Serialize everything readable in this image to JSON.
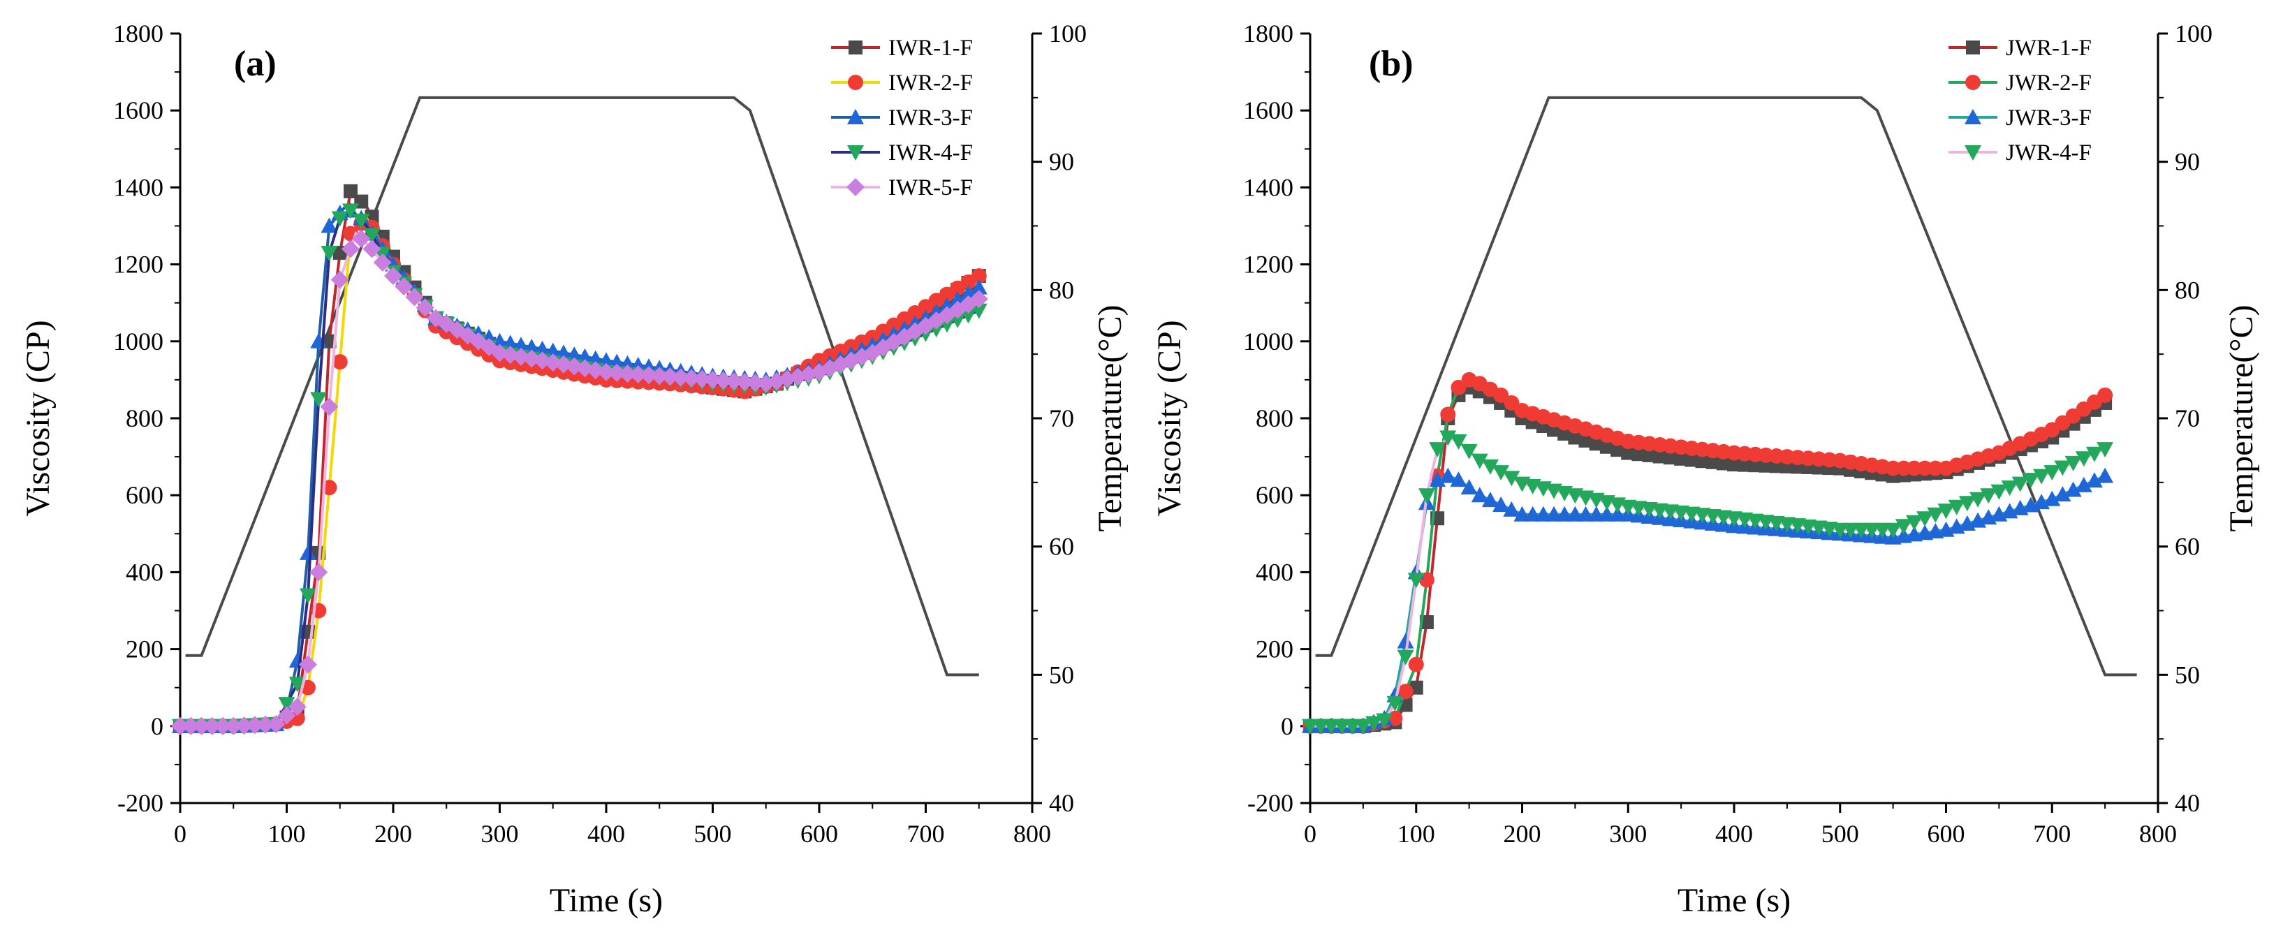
{
  "figure": {
    "description_panels": [
      "(a)",
      "(b)"
    ]
  },
  "chart_data": [
    {
      "type": "line",
      "panel_label": "(a)",
      "xlabel": "Time (s)",
      "ylabel": "Viscosity (CP)",
      "y2label": "Temperature(°C)",
      "xlim": [
        0,
        800
      ],
      "ylim": [
        -200,
        1800
      ],
      "y2lim": [
        40,
        100
      ],
      "xticks": [
        0,
        100,
        200,
        300,
        400,
        500,
        600,
        700,
        800
      ],
      "yticks": [
        -200,
        0,
        200,
        400,
        600,
        800,
        1000,
        1200,
        1400,
        1600,
        1800
      ],
      "y2ticks": [
        40,
        50,
        60,
        70,
        80,
        90,
        100
      ],
      "legend_position": "top-right",
      "temperature_profile": {
        "name": "Temperature",
        "axis": "right",
        "color": "#4a4a4a",
        "x": [
          5,
          20,
          225,
          240,
          520,
          535,
          720,
          750
        ],
        "y": [
          51.5,
          51.5,
          95,
          95,
          95,
          94,
          50,
          50
        ]
      },
      "series": [
        {
          "name": "IWR-1-F",
          "color": "#c0262b",
          "marker": "square",
          "marker_color": "#4a4a4a",
          "x": [
            0,
            50,
            90,
            110,
            130,
            140,
            150,
            160,
            175,
            200,
            240,
            300,
            400,
            460,
            500,
            530,
            560,
            600,
            650,
            700,
            750
          ],
          "y": [
            0,
            0,
            5,
            40,
            450,
            1000,
            1230,
            1390,
            1350,
            1220,
            1060,
            980,
            920,
            900,
            880,
            870,
            890,
            940,
            1000,
            1080,
            1170
          ]
        },
        {
          "name": "IWR-2-F",
          "color": "#f5d800",
          "marker": "circle",
          "marker_color": "#f03a34",
          "x": [
            0,
            50,
            90,
            110,
            120,
            130,
            145,
            160,
            175,
            200,
            240,
            300,
            400,
            460,
            500,
            530,
            560,
            600,
            650,
            700,
            750
          ],
          "y": [
            0,
            0,
            5,
            20,
            100,
            300,
            780,
            1280,
            1320,
            1200,
            1040,
            950,
            900,
            890,
            880,
            870,
            890,
            950,
            1010,
            1090,
            1170
          ]
        },
        {
          "name": "IWR-3-F",
          "color": "#1f5fa8",
          "marker": "triangle-up",
          "marker_color": "#1f66d8",
          "x": [
            0,
            50,
            90,
            100,
            110,
            120,
            130,
            140,
            155,
            170,
            200,
            240,
            300,
            400,
            500,
            550,
            600,
            650,
            700,
            750
          ],
          "y": [
            0,
            0,
            5,
            40,
            170,
            450,
            1000,
            1300,
            1350,
            1320,
            1200,
            1060,
            1000,
            950,
            910,
            900,
            930,
            990,
            1060,
            1140
          ]
        },
        {
          "name": "IWR-4-F",
          "color": "#2c2c8a",
          "marker": "triangle-down",
          "marker_color": "#22a85a",
          "x": [
            0,
            50,
            90,
            110,
            120,
            130,
            140,
            150,
            160,
            175,
            200,
            240,
            300,
            400,
            500,
            550,
            600,
            650,
            700,
            750
          ],
          "y": [
            0,
            0,
            5,
            110,
            340,
            850,
            1230,
            1320,
            1340,
            1300,
            1180,
            1060,
            970,
            920,
            890,
            880,
            910,
            960,
            1020,
            1080
          ]
        },
        {
          "name": "IWR-5-F",
          "color": "#f0b4e0",
          "marker": "diamond",
          "marker_color": "#c97ee0",
          "x": [
            0,
            50,
            90,
            110,
            120,
            130,
            140,
            150,
            165,
            180,
            200,
            240,
            300,
            400,
            500,
            550,
            600,
            650,
            700,
            750
          ],
          "y": [
            0,
            0,
            5,
            50,
            160,
            400,
            830,
            1160,
            1280,
            1240,
            1170,
            1060,
            970,
            920,
            900,
            890,
            920,
            970,
            1040,
            1110
          ]
        }
      ]
    },
    {
      "type": "line",
      "panel_label": "(b)",
      "xlabel": "Time (s)",
      "ylabel": "Viscosity (CP)",
      "y2label": "Temperature(°C)",
      "xlim": [
        0,
        800
      ],
      "ylim": [
        -200,
        1800
      ],
      "y2lim": [
        40,
        100
      ],
      "xticks": [
        0,
        100,
        200,
        300,
        400,
        500,
        600,
        700,
        800
      ],
      "yticks": [
        -200,
        0,
        200,
        400,
        600,
        800,
        1000,
        1200,
        1400,
        1600,
        1800
      ],
      "y2ticks": [
        40,
        50,
        60,
        70,
        80,
        90,
        100
      ],
      "legend_position": "top-right",
      "temperature_profile": {
        "name": "Temperature",
        "axis": "right",
        "color": "#4a4a4a",
        "x": [
          5,
          20,
          225,
          240,
          520,
          535,
          750,
          780
        ],
        "y": [
          51.5,
          51.5,
          95,
          95,
          95,
          94,
          50,
          50
        ]
      },
      "series": [
        {
          "name": "JWR-1-F",
          "color": "#c0262b",
          "marker": "square",
          "marker_color": "#4a4a4a",
          "x": [
            0,
            50,
            80,
            100,
            110,
            120,
            130,
            140,
            150,
            160,
            180,
            200,
            250,
            300,
            400,
            500,
            550,
            600,
            650,
            700,
            750
          ],
          "y": [
            0,
            0,
            10,
            100,
            270,
            540,
            800,
            860,
            880,
            870,
            840,
            800,
            750,
            710,
            680,
            670,
            650,
            660,
            700,
            750,
            840
          ]
        },
        {
          "name": "JWR-2-F",
          "color": "#22a85a",
          "marker": "circle",
          "marker_color": "#f03a34",
          "x": [
            0,
            50,
            80,
            100,
            110,
            120,
            130,
            140,
            150,
            160,
            180,
            200,
            250,
            300,
            400,
            500,
            550,
            600,
            650,
            700,
            750
          ],
          "y": [
            0,
            0,
            20,
            160,
            380,
            650,
            810,
            880,
            900,
            890,
            860,
            820,
            780,
            740,
            710,
            690,
            670,
            670,
            710,
            770,
            860
          ]
        },
        {
          "name": "JWR-3-F",
          "color": "#22a8a0",
          "marker": "triangle-up",
          "marker_color": "#1f66d8",
          "x": [
            0,
            50,
            70,
            80,
            90,
            100,
            110,
            120,
            130,
            140,
            160,
            200,
            250,
            300,
            400,
            500,
            550,
            600,
            650,
            700,
            750
          ],
          "y": [
            0,
            0,
            20,
            80,
            220,
            400,
            580,
            640,
            650,
            640,
            600,
            550,
            550,
            550,
            520,
            500,
            490,
            510,
            550,
            590,
            650
          ]
        },
        {
          "name": "JWR-4-F",
          "color": "#f0b4e0",
          "marker": "triangle-down",
          "marker_color": "#22a85a",
          "x": [
            0,
            50,
            70,
            80,
            90,
            100,
            110,
            120,
            130,
            140,
            160,
            200,
            250,
            300,
            400,
            500,
            550,
            600,
            650,
            700,
            750
          ],
          "y": [
            0,
            0,
            15,
            60,
            180,
            380,
            600,
            720,
            750,
            740,
            690,
            630,
            600,
            570,
            540,
            510,
            510,
            560,
            610,
            660,
            720
          ]
        }
      ]
    }
  ]
}
